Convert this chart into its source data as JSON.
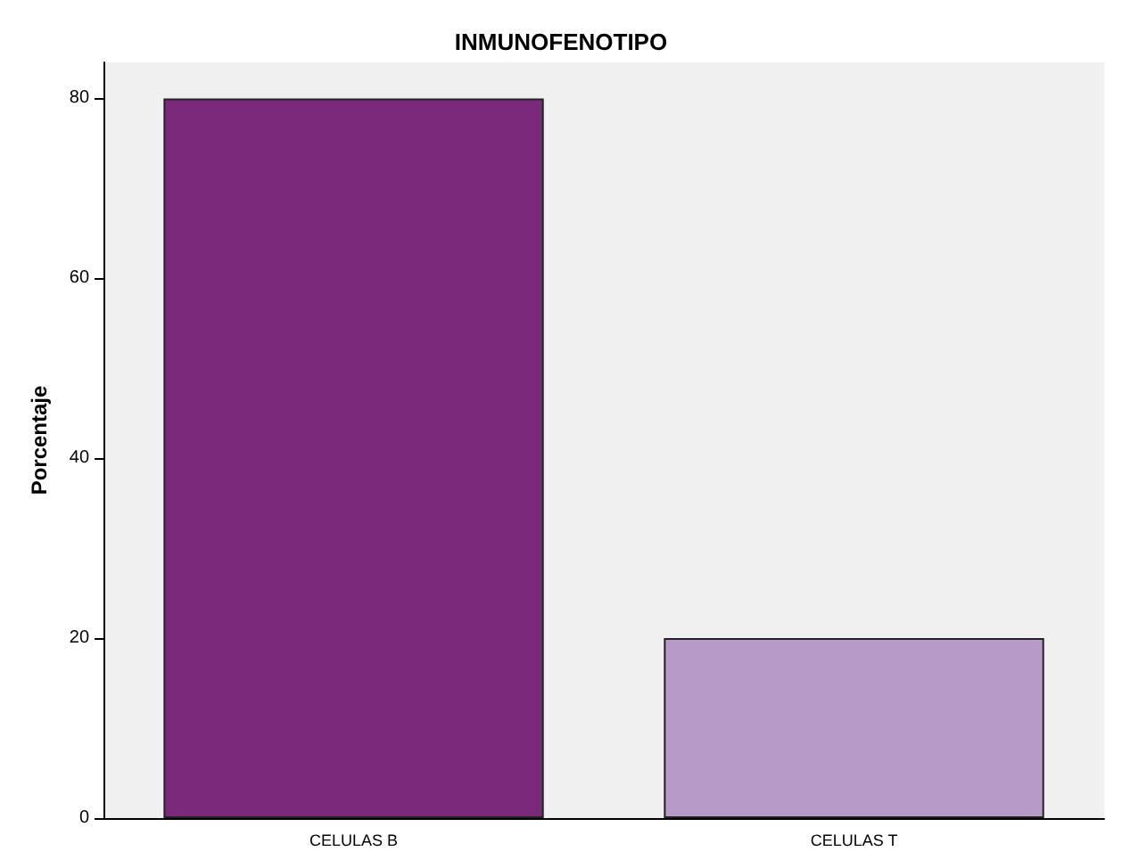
{
  "chart_data": {
    "type": "bar",
    "title": "INMUNOFENOTIPO",
    "ylabel": "Porcentaje",
    "categories": [
      "CELULAS B",
      "CELULAS T"
    ],
    "values": [
      80,
      20
    ],
    "colors": [
      "#7b2a7b",
      "#b89ac9"
    ],
    "ylim": [
      0,
      84
    ],
    "yticks": [
      0,
      20,
      40,
      60,
      80
    ]
  }
}
